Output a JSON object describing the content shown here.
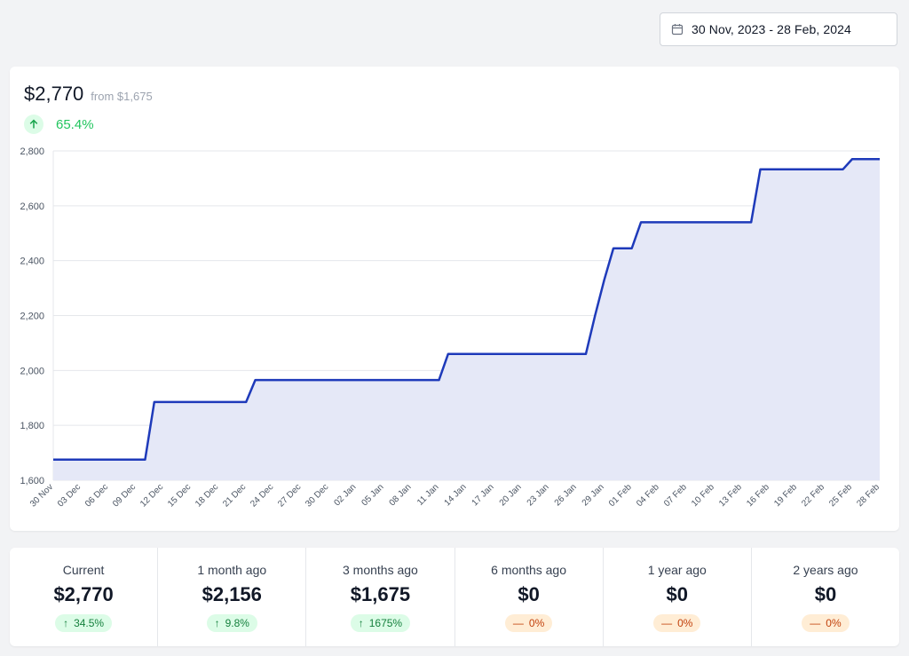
{
  "date_range": {
    "label": "30 Nov, 2023 - 28 Feb, 2024"
  },
  "summary": {
    "current_value": "$2,770",
    "from_value": "from $1,675",
    "change_pct": "65.4%"
  },
  "colors": {
    "line": "#1e3aba",
    "area": "#e5e8f7",
    "positive": "#22c55e",
    "neutral": "#ea580c"
  },
  "chart_data": {
    "type": "area",
    "x": [
      "30 Nov",
      "01 Dec",
      "02 Dec",
      "03 Dec",
      "04 Dec",
      "05 Dec",
      "06 Dec",
      "07 Dec",
      "08 Dec",
      "09 Dec",
      "10 Dec",
      "11 Dec",
      "12 Dec",
      "13 Dec",
      "14 Dec",
      "15 Dec",
      "16 Dec",
      "17 Dec",
      "18 Dec",
      "19 Dec",
      "20 Dec",
      "21 Dec",
      "22 Dec",
      "23 Dec",
      "24 Dec",
      "25 Dec",
      "26 Dec",
      "27 Dec",
      "28 Dec",
      "29 Dec",
      "30 Dec",
      "31 Dec",
      "01 Jan",
      "02 Jan",
      "03 Jan",
      "04 Jan",
      "05 Jan",
      "06 Jan",
      "07 Jan",
      "08 Jan",
      "09 Jan",
      "10 Jan",
      "11 Jan",
      "12 Jan",
      "13 Jan",
      "14 Jan",
      "15 Jan",
      "16 Jan",
      "17 Jan",
      "18 Jan",
      "19 Jan",
      "20 Jan",
      "21 Jan",
      "22 Jan",
      "23 Jan",
      "24 Jan",
      "25 Jan",
      "26 Jan",
      "27 Jan",
      "28 Jan",
      "29 Jan",
      "30 Jan",
      "31 Jan",
      "01 Feb",
      "02 Feb",
      "03 Feb",
      "04 Feb",
      "05 Feb",
      "06 Feb",
      "07 Feb",
      "08 Feb",
      "09 Feb",
      "10 Feb",
      "11 Feb",
      "12 Feb",
      "13 Feb",
      "14 Feb",
      "15 Feb",
      "16 Feb",
      "17 Feb",
      "18 Feb",
      "19 Feb",
      "20 Feb",
      "21 Feb",
      "22 Feb",
      "23 Feb",
      "24 Feb",
      "25 Feb",
      "26 Feb",
      "27 Feb",
      "28 Feb"
    ],
    "values": [
      1675,
      1675,
      1675,
      1675,
      1675,
      1675,
      1675,
      1675,
      1675,
      1675,
      1675,
      1885,
      1885,
      1885,
      1885,
      1885,
      1885,
      1885,
      1885,
      1885,
      1885,
      1885,
      1965,
      1965,
      1965,
      1965,
      1965,
      1965,
      1965,
      1965,
      1965,
      1965,
      1965,
      1965,
      1965,
      1965,
      1965,
      1965,
      1965,
      1965,
      1965,
      1965,
      1965,
      2060,
      2060,
      2060,
      2060,
      2060,
      2060,
      2060,
      2060,
      2060,
      2060,
      2060,
      2060,
      2060,
      2060,
      2060,
      2060,
      2200,
      2330,
      2445,
      2445,
      2445,
      2540,
      2540,
      2540,
      2540,
      2540,
      2540,
      2540,
      2540,
      2540,
      2540,
      2540,
      2540,
      2540,
      2733,
      2733,
      2733,
      2733,
      2733,
      2733,
      2733,
      2733,
      2733,
      2733,
      2770,
      2770,
      2770,
      2770
    ],
    "xticks": [
      "30 Nov",
      "03 Dec",
      "06 Dec",
      "09 Dec",
      "12 Dec",
      "15 Dec",
      "18 Dec",
      "21 Dec",
      "24 Dec",
      "27 Dec",
      "30 Dec",
      "02 Jan",
      "05 Jan",
      "08 Jan",
      "11 Jan",
      "14 Jan",
      "17 Jan",
      "20 Jan",
      "23 Jan",
      "26 Jan",
      "29 Jan",
      "01 Feb",
      "04 Feb",
      "07 Feb",
      "10 Feb",
      "13 Feb",
      "16 Feb",
      "19 Feb",
      "22 Feb",
      "25 Feb",
      "28 Feb"
    ],
    "yticks": [
      "1,600",
      "1,800",
      "2,000",
      "2,200",
      "2,400",
      "2,600",
      "2,800"
    ],
    "ylim": [
      1600,
      2800
    ],
    "grid": true,
    "legend": "none"
  },
  "stats": [
    {
      "label": "Current",
      "value": "$2,770",
      "change": "34.5%",
      "trend": "up"
    },
    {
      "label": "1 month ago",
      "value": "$2,156",
      "change": "9.8%",
      "trend": "up"
    },
    {
      "label": "3 months ago",
      "value": "$1,675",
      "change": "1675%",
      "trend": "up"
    },
    {
      "label": "6 months ago",
      "value": "$0",
      "change": "0%",
      "trend": "flat"
    },
    {
      "label": "1 year ago",
      "value": "$0",
      "change": "0%",
      "trend": "flat"
    },
    {
      "label": "2 years ago",
      "value": "$0",
      "change": "0%",
      "trend": "flat"
    }
  ]
}
